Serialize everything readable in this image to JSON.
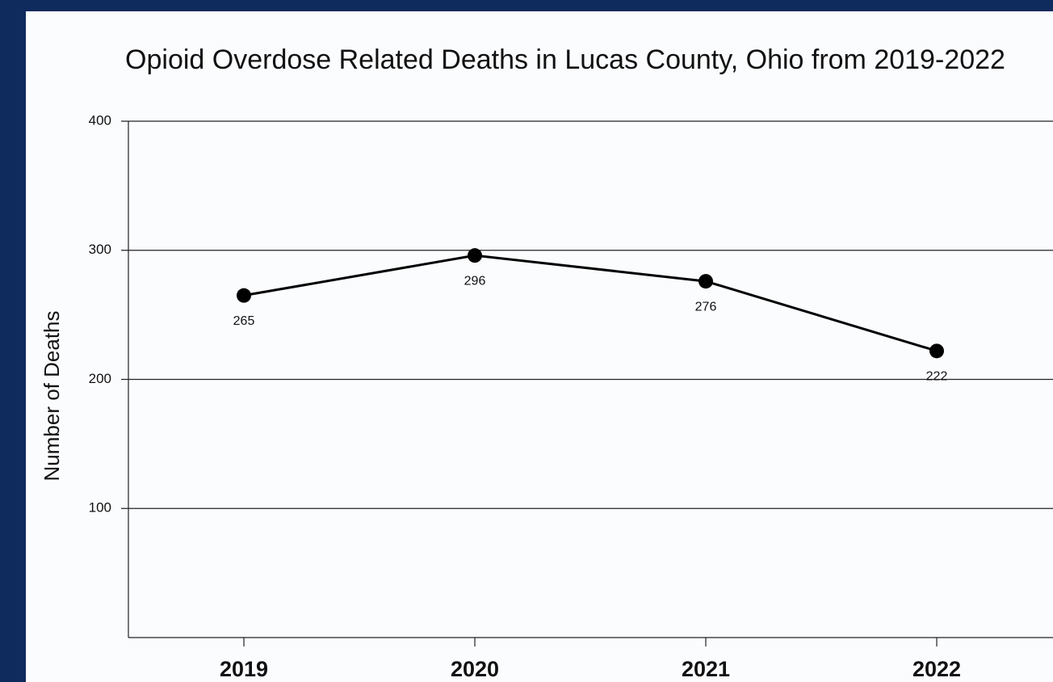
{
  "chart_data": {
    "type": "line",
    "title": "Opioid Overdose Related Deaths in Lucas County, Ohio from 2019-2022",
    "y_label": "Number of Deaths",
    "categories": [
      "2019",
      "2020",
      "2021",
      "2022"
    ],
    "values": [
      265,
      296,
      276,
      222
    ],
    "color": "#000000",
    "ylim": [
      0,
      400
    ],
    "yticks": [
      100,
      200,
      300,
      400
    ],
    "grid": true
  }
}
